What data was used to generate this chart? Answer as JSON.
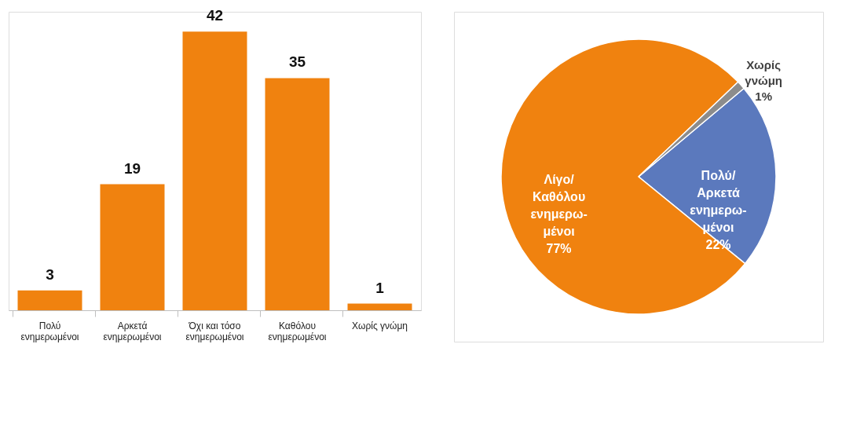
{
  "chart_data": [
    {
      "type": "bar",
      "categories": [
        "Πολύ ενημερωμένοι",
        "Αρκετά ενημερωμένοι",
        "Όχι και τόσο ενημερωμένοι",
        "Καθόλου ενημερωμένοι",
        "Χωρίς γνώμη"
      ],
      "values": [
        3,
        19,
        42,
        35,
        1
      ],
      "color": "#f0820f",
      "data_labels": true,
      "grid": false,
      "tick_labels": "x"
    },
    {
      "type": "pie",
      "categories": [
        "Πολύ/ Αρκετά ενημερω-μένοι",
        "Λίγο/ Καθόλου ενημερω-μένοι",
        "Χωρίς γνώμη"
      ],
      "values": [
        22,
        77,
        1
      ],
      "colors": [
        "#5b79bd",
        "#f0820f",
        "#8c8c8c"
      ],
      "value_labels": [
        "22%",
        "77%",
        "1%"
      ],
      "legend": false
    }
  ]
}
